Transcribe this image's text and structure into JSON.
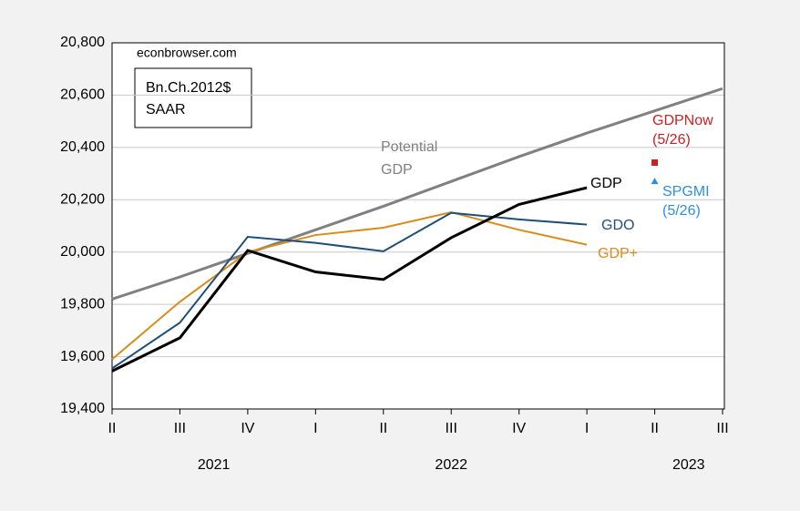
{
  "chart_data": {
    "type": "line",
    "note": "econbrowser.com",
    "units_box": [
      "Bn.Ch.2012$",
      "SAAR"
    ],
    "categories": [
      "II",
      "III",
      "IV",
      "I",
      "II",
      "III",
      "IV",
      "I",
      "II",
      "III"
    ],
    "x_groups": [
      {
        "label": "2021",
        "start": 0,
        "end": 2
      },
      {
        "label": "2022",
        "start": 3,
        "end": 6
      },
      {
        "label": "2023",
        "start": 7,
        "end": 9
      }
    ],
    "ylim": [
      19400,
      20800
    ],
    "yticks": [
      {
        "value": 19400,
        "label": "19,400"
      },
      {
        "value": 19600,
        "label": "19,600"
      },
      {
        "value": 19800,
        "label": "19,800"
      },
      {
        "value": 20000,
        "label": "20,000"
      },
      {
        "value": 20200,
        "label": "20,200"
      },
      {
        "value": 20400,
        "label": "20,400"
      },
      {
        "value": 20600,
        "label": "20,600"
      },
      {
        "value": 20800,
        "label": "20,800"
      }
    ],
    "grid": true,
    "series": [
      {
        "name_lines": [
          "Potential",
          "GDP"
        ],
        "color": "#808080",
        "width": 3,
        "values": [
          19820,
          19905,
          19995,
          20085,
          20175,
          20270,
          20365,
          20455,
          20540,
          20625
        ]
      },
      {
        "name": "GDP+",
        "color": "#d98c1a",
        "width": 2,
        "values": [
          19590,
          19810,
          20000,
          20065,
          20093,
          20152,
          20085,
          20028,
          null,
          null
        ]
      },
      {
        "name": "GDO",
        "color": "#1f4e79",
        "width": 2,
        "values": [
          19555,
          19730,
          20058,
          20035,
          20003,
          20150,
          20125,
          20105,
          null,
          null
        ]
      },
      {
        "name": "GDP",
        "color": "#000000",
        "width": 3,
        "values": [
          19545,
          19672,
          20006,
          19924,
          19895,
          20055,
          20182,
          20246,
          null,
          null
        ]
      }
    ],
    "points": [
      {
        "name_lines": [
          "GDPNow",
          "(5/26)"
        ],
        "color": "#cc1f1f",
        "marker": "square",
        "index": 8,
        "value": 20342
      },
      {
        "name_lines": [
          "SPGMI",
          "(5/26)"
        ],
        "color": "#2b8fe0",
        "marker": "triangle",
        "index": 8,
        "value": 20270
      }
    ]
  }
}
